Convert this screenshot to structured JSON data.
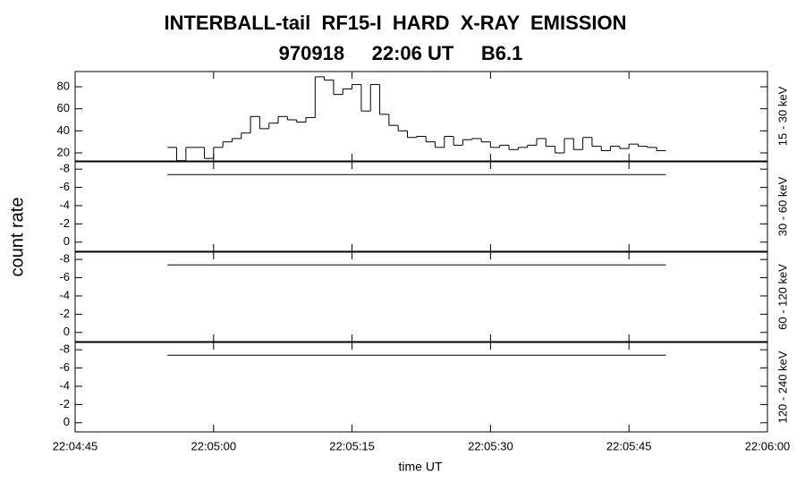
{
  "chart_data": {
    "type": "histogram",
    "title": "INTERBALL-tail  RF15-I  HARD  X-RAY  EMISSION",
    "subtitle": "970918     22:06 UT     B6.1",
    "ylabel": "count rate",
    "xlabel": "time UT",
    "xlim": [
      "22:04:45",
      "22:06:00"
    ],
    "xticks": [
      "22:04:45",
      "22:05:00",
      "22:05:15",
      "22:05:30",
      "22:05:45",
      "22:06:00"
    ],
    "color": "#000000",
    "panels": [
      {
        "label": "15 - 30 keV",
        "ylim": [
          12.7,
          93.8
        ],
        "yticks": [
          20,
          40,
          60,
          80
        ],
        "bins": [
          "22:04:55",
          "22:04:56",
          "22:04:57",
          "22:04:58",
          "22:04:59",
          "22:05:00",
          "22:05:01",
          "22:05:02",
          "22:05:03",
          "22:05:04",
          "22:05:05",
          "22:05:06",
          "22:05:07",
          "22:05:08",
          "22:05:09",
          "22:05:10",
          "22:05:11",
          "22:05:12",
          "22:05:13",
          "22:05:14",
          "22:05:15",
          "22:05:16",
          "22:05:17",
          "22:05:18",
          "22:05:19",
          "22:05:20",
          "22:05:21",
          "22:05:22",
          "22:05:23",
          "22:05:24",
          "22:05:25",
          "22:05:26",
          "22:05:27",
          "22:05:28",
          "22:05:29",
          "22:05:30",
          "22:05:31",
          "22:05:32",
          "22:05:33",
          "22:05:34",
          "22:05:35",
          "22:05:36",
          "22:05:37",
          "22:05:38",
          "22:05:39",
          "22:05:40",
          "22:05:41",
          "22:05:42",
          "22:05:43",
          "22:05:44",
          "22:05:45",
          "22:05:46",
          "22:05:47",
          "22:05:48",
          "22:05:49"
        ],
        "values": [
          25,
          13,
          25,
          25,
          15,
          25,
          30,
          33,
          38,
          53,
          42,
          47,
          53,
          50,
          48,
          52,
          89,
          86,
          73,
          78,
          82,
          58,
          82,
          55,
          45,
          40,
          34,
          35,
          30,
          25,
          35,
          27,
          32,
          33,
          30,
          25,
          27,
          23,
          25,
          27,
          33,
          26,
          20,
          33,
          23,
          34,
          26,
          22,
          26,
          24,
          28,
          26,
          25,
          22
        ]
      },
      {
        "label": "30 - 60 keV",
        "ylim": [
          1.0,
          -8.8
        ],
        "yticks": [
          -8,
          -6,
          -4,
          -2,
          0
        ],
        "bins": [
          "22:04:55",
          "22:05:49"
        ],
        "values": [
          -7.4
        ]
      },
      {
        "label": "60 - 120 keV",
        "ylim": [
          1.0,
          -8.8
        ],
        "yticks": [
          -8,
          -6,
          -4,
          -2,
          0
        ],
        "bins": [
          "22:04:55",
          "22:05:49"
        ],
        "values": [
          -7.4
        ]
      },
      {
        "label": "120 - 240 keV",
        "ylim": [
          1.0,
          -8.8
        ],
        "yticks": [
          -8,
          -6,
          -4,
          -2,
          0
        ],
        "bins": [
          "22:04:55",
          "22:05:49"
        ],
        "values": [
          -7.4
        ]
      }
    ]
  }
}
